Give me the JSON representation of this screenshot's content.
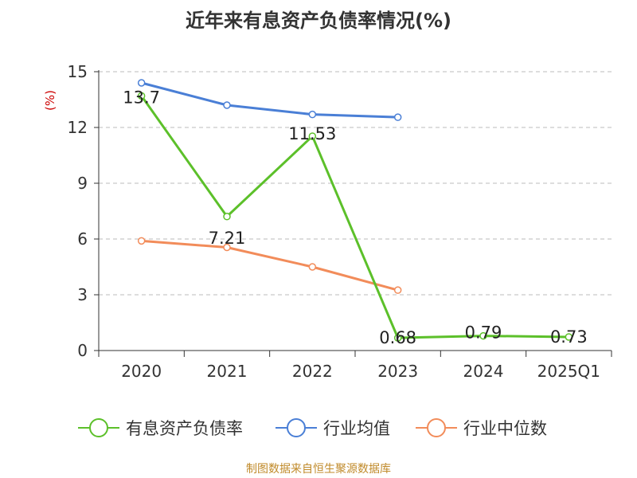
{
  "chart_data": {
    "type": "line",
    "title": "近年来有息资产负债率情况(%)",
    "ylabel": "(%)",
    "xlabel": "",
    "categories": [
      "2020",
      "2021",
      "2022",
      "2023",
      "2024",
      "2025Q1"
    ],
    "ylim": [
      0,
      15
    ],
    "yticks": [
      0,
      3,
      6,
      9,
      12,
      15
    ],
    "grid": true,
    "legend_position": "bottom",
    "series": [
      {
        "name": "有息资产负债率",
        "color": "#5cc02a",
        "values": [
          13.7,
          7.21,
          11.53,
          0.68,
          0.79,
          0.73
        ],
        "labels": [
          "13.7",
          "7.21",
          "11.53",
          "0.68",
          "0.79",
          "0.73"
        ]
      },
      {
        "name": "行业均值",
        "color": "#4a7fd6",
        "values": [
          14.4,
          13.2,
          12.7,
          12.55,
          null,
          null
        ]
      },
      {
        "name": "行业中位数",
        "color": "#f28c5a",
        "values": [
          5.9,
          5.55,
          4.5,
          3.25,
          null,
          null
        ]
      }
    ],
    "source": "制图数据来自恒生聚源数据库"
  }
}
